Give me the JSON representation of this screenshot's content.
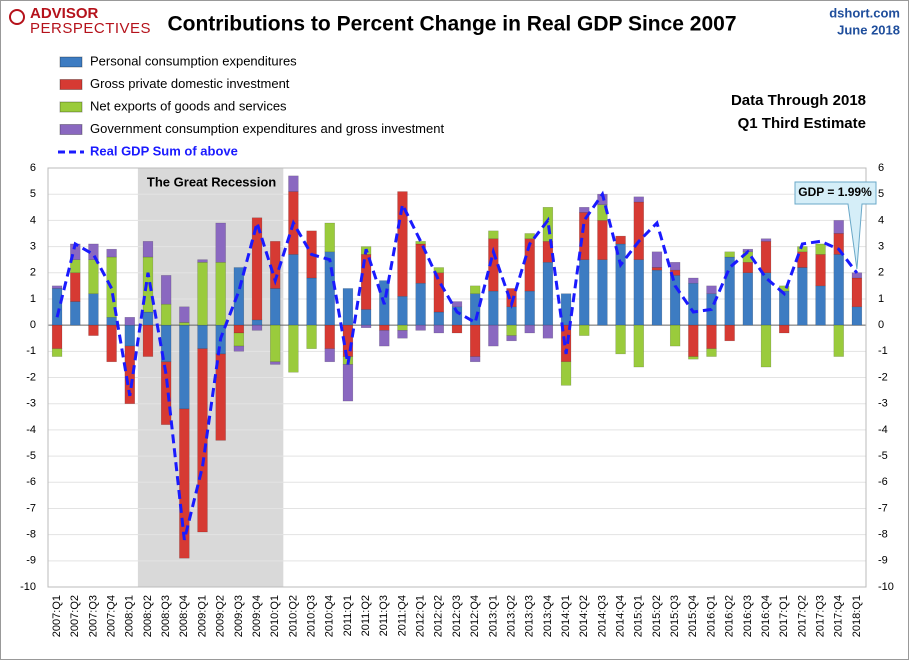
{
  "chart_data": {
    "type": "bar",
    "title": "Contributions to Percent Change in Real GDP Since 2007",
    "logo": [
      "ADVISOR",
      "PERSPECTIVES"
    ],
    "source": "dshort.com",
    "date": "June 2018",
    "note": [
      "Data Through 2018",
      "Q1 Third Estimate"
    ],
    "shaded_label": "The Great Recession",
    "callout": "GDP = 1.99%",
    "categories": [
      "2007:Q1",
      "2007:Q2",
      "2007:Q3",
      "2007:Q4",
      "2008:Q1",
      "2008:Q2",
      "2008:Q3",
      "2008:Q4",
      "2009:Q1",
      "2009:Q2",
      "2009:Q3",
      "2009:Q4",
      "2010:Q1",
      "2010:Q2",
      "2010:Q3",
      "2010:Q4",
      "2011:Q1",
      "2011:Q2",
      "2011:Q3",
      "2011:Q4",
      "2012:Q1",
      "2012:Q2",
      "2012:Q3",
      "2012:Q4",
      "2013:Q1",
      "2013:Q2",
      "2013:Q3",
      "2013:Q4",
      "2014:Q1",
      "2014:Q2",
      "2014:Q3",
      "2014:Q4",
      "2015:Q1",
      "2015:Q2",
      "2015:Q3",
      "2015:Q4",
      "2016:Q1",
      "2016:Q2",
      "2016:Q3",
      "2016:Q4",
      "2017:Q1",
      "2017:Q2",
      "2017:Q3",
      "2017:Q4",
      "2018:Q1"
    ],
    "series": [
      {
        "name": "Personal consumption expenditures",
        "color": "#3d7cc2",
        "values": [
          1.4,
          0.9,
          1.2,
          0.3,
          -0.8,
          0.5,
          -1.4,
          -3.2,
          -0.9,
          -1.1,
          2.2,
          0.2,
          1.4,
          2.7,
          1.8,
          2.8,
          1.4,
          0.6,
          1.7,
          1.1,
          1.6,
          0.5,
          0.7,
          1.2,
          1.3,
          0.7,
          1.3,
          2.4,
          1.2,
          2.5,
          2.5,
          3.1,
          2.5,
          2.1,
          1.9,
          1.6,
          1.2,
          2.6,
          2.0,
          2.0,
          1.3,
          2.2,
          1.5,
          2.7,
          0.7
        ]
      },
      {
        "name": "Gross private domestic investment",
        "color": "#d63a33",
        "values": [
          -0.9,
          1.1,
          -0.4,
          -1.4,
          -2.2,
          -1.2,
          -2.4,
          -5.7,
          -7.0,
          -3.3,
          -0.3,
          3.9,
          1.8,
          2.4,
          1.8,
          -0.9,
          -1.2,
          2.1,
          -0.2,
          4.0,
          1.5,
          1.5,
          -0.3,
          -1.2,
          2.0,
          0.7,
          2.0,
          0.8,
          -1.4,
          1.8,
          1.5,
          0.3,
          2.2,
          0.1,
          0.2,
          -1.2,
          -0.9,
          -0.6,
          0.4,
          1.2,
          -0.3,
          0.6,
          1.2,
          0.8,
          1.1
        ]
      },
      {
        "name": "Net exports of goods and services",
        "color": "#9acb3c",
        "values": [
          -0.3,
          0.5,
          1.3,
          2.3,
          0.0,
          2.1,
          0.8,
          0.1,
          2.4,
          2.4,
          -0.5,
          0.0,
          -1.4,
          -1.8,
          -0.9,
          1.1,
          -0.3,
          0.3,
          0.0,
          -0.2,
          0.1,
          0.2,
          0.0,
          0.3,
          0.3,
          -0.4,
          0.2,
          1.3,
          -0.9,
          -0.4,
          0.6,
          -1.1,
          -1.6,
          0.0,
          -0.8,
          -0.1,
          -0.3,
          0.2,
          0.4,
          -1.6,
          0.2,
          0.2,
          0.4,
          -1.2,
          0.0
        ]
      },
      {
        "name": "Government consumption expenditures and gross investment",
        "color": "#8a68c0",
        "values": [
          0.1,
          0.6,
          0.6,
          0.3,
          0.3,
          0.6,
          1.1,
          0.6,
          0.1,
          1.5,
          -0.2,
          -0.2,
          -0.1,
          0.6,
          0.0,
          -0.5,
          -1.4,
          -0.1,
          -0.6,
          -0.3,
          -0.2,
          -0.3,
          0.2,
          -0.2,
          -0.8,
          -0.2,
          -0.3,
          -0.5,
          0.0,
          0.2,
          0.4,
          0.0,
          0.2,
          0.6,
          0.3,
          0.2,
          0.3,
          0.0,
          0.1,
          0.1,
          0.0,
          0.0,
          0.0,
          0.5,
          0.2
        ]
      }
    ],
    "line": {
      "name": "Real GDP Sum of above",
      "color": "#1a1aff",
      "values": [
        0.3,
        3.1,
        2.7,
        1.4,
        -2.7,
        2.0,
        -1.9,
        -8.2,
        -5.4,
        -0.5,
        1.3,
        3.9,
        1.7,
        3.9,
        2.7,
        2.5,
        -1.5,
        2.9,
        0.8,
        4.6,
        3.2,
        1.7,
        0.5,
        0.1,
        2.8,
        0.8,
        3.1,
        4.0,
        -1.1,
        4.0,
        5.0,
        2.3,
        3.2,
        3.9,
        1.5,
        0.5,
        0.6,
        2.2,
        2.8,
        1.8,
        1.2,
        3.1,
        3.2,
        2.9,
        1.99
      ]
    },
    "ylim": [
      -10,
      6
    ],
    "yticks": [
      -10,
      -9,
      -8,
      -7,
      -6,
      -5,
      -4,
      -3,
      -2,
      -1,
      0,
      1,
      2,
      3,
      4,
      5,
      6
    ],
    "grid": true
  }
}
